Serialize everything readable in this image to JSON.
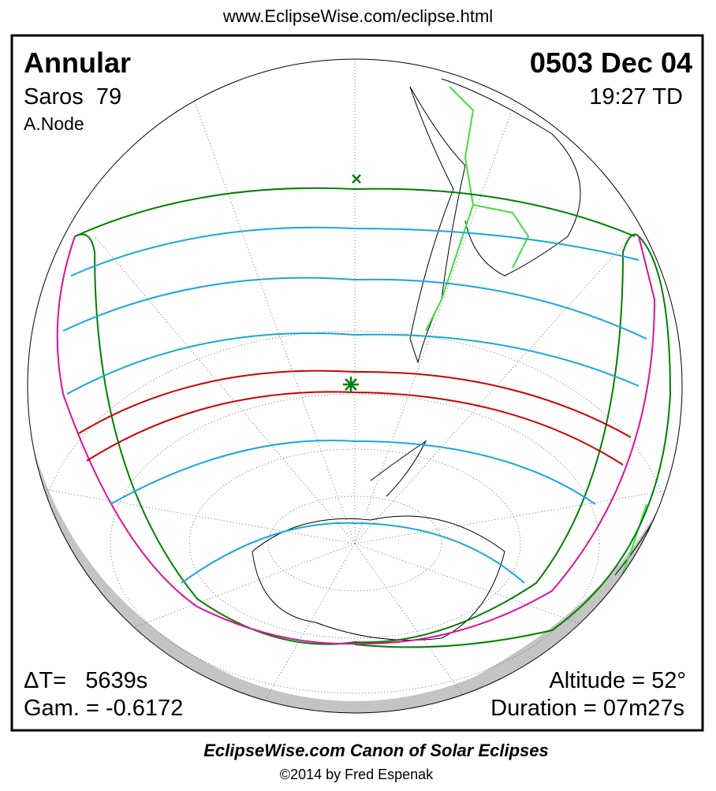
{
  "header": {
    "url": "www.EclipseWise.com/eclipse.html"
  },
  "panel": {
    "eclipse_type": "Annular",
    "date": "0503 Dec 04",
    "saros": "Saros  79",
    "time": "19:27 TD",
    "node": "A.Node",
    "delta_t": "ΔT=   5639s",
    "gamma": "Gam. = -0.6172",
    "altitude": "Altitude = 52°",
    "duration": "Duration = 07m27s"
  },
  "footer": {
    "title": "EclipseWise.com Canon of Solar Eclipses",
    "credit": "©2014 by Fred Espenak"
  }
}
